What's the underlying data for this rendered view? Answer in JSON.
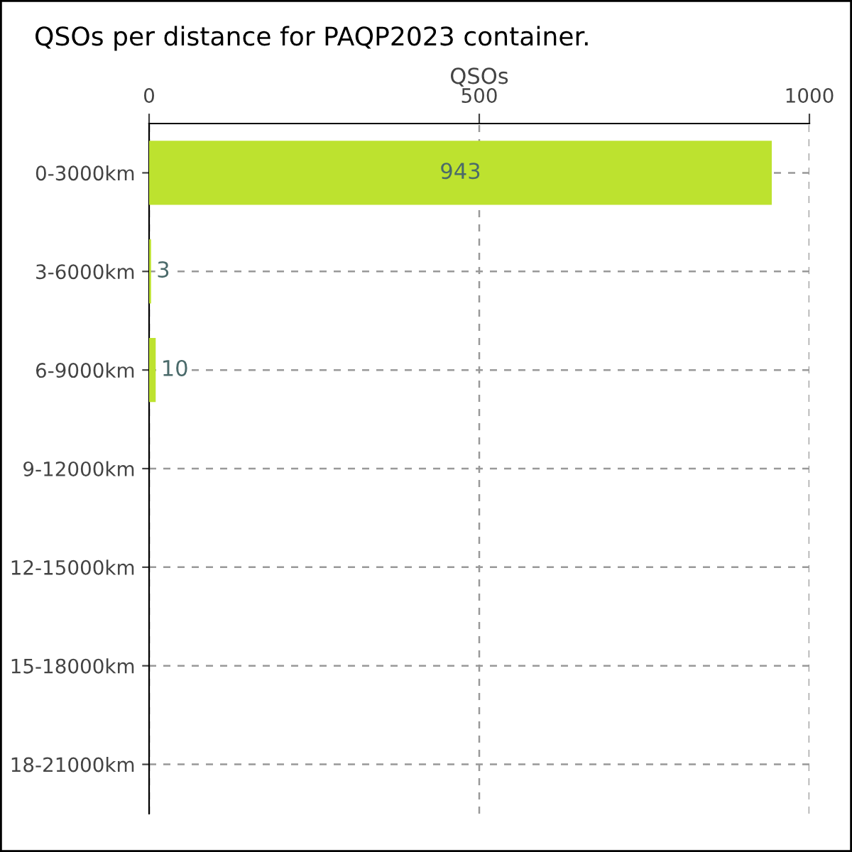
{
  "chart_data": {
    "type": "bar",
    "orientation": "horizontal",
    "title": "QSOs per distance for PAQP2023 container.",
    "xlabel": "QSOs",
    "categories": [
      "0-3000km",
      "3-6000km",
      "6-9000km",
      "9-12000km",
      "12-15000km",
      "15-18000km",
      "18-21000km"
    ],
    "values": [
      943,
      3,
      10,
      0,
      0,
      0,
      0
    ],
    "color": "#bde22f",
    "value_labels": [
      "943",
      "3",
      "10",
      null,
      null,
      null,
      null
    ],
    "xlim": [
      0,
      1000
    ],
    "xticks": [
      0,
      500,
      1000
    ],
    "grid": true
  }
}
